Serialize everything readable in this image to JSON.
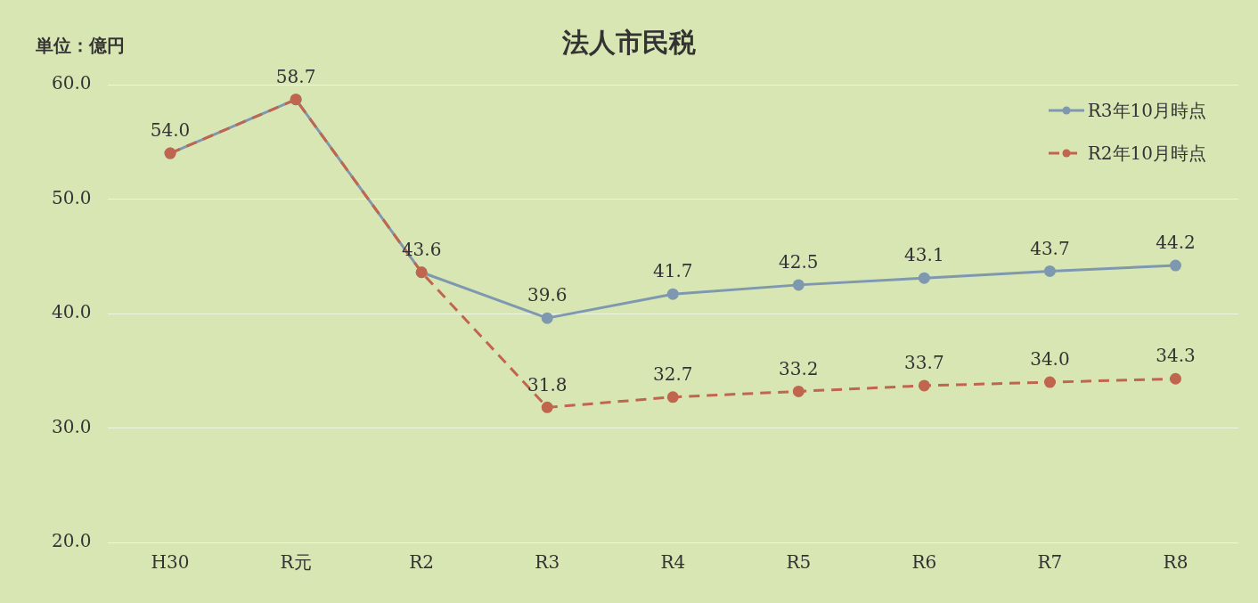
{
  "chart_data": {
    "type": "line",
    "title": "法人市民税",
    "annotations": [
      "単位：億円"
    ],
    "categories": [
      "H30",
      "R元",
      "R2",
      "R3",
      "R4",
      "R5",
      "R6",
      "R7",
      "R8"
    ],
    "series": [
      {
        "name": "R3年10月時点",
        "color": "#7e98b0",
        "line_style": "solid",
        "values": [
          54.0,
          58.7,
          43.6,
          39.6,
          41.7,
          42.5,
          43.1,
          43.7,
          44.2
        ],
        "value_labels": [
          "54.0",
          "58.7",
          "43.6",
          "39.6",
          "41.7",
          "42.5",
          "43.1",
          "43.7",
          "44.2"
        ]
      },
      {
        "name": "R2年10月時点",
        "color": "#c0654e",
        "line_style": "dashed",
        "values": [
          54.0,
          58.7,
          43.6,
          31.8,
          32.7,
          33.2,
          33.7,
          34.0,
          34.3
        ],
        "value_labels": [
          null,
          null,
          null,
          "31.8",
          "32.7",
          "33.2",
          "33.7",
          "34.0",
          "34.3"
        ]
      }
    ],
    "ylim": [
      20,
      60
    ],
    "yticks": [
      {
        "value": 20,
        "label": "20.0"
      },
      {
        "value": 30,
        "label": "30.0"
      },
      {
        "value": 40,
        "label": "40.0"
      },
      {
        "value": 50,
        "label": "50.0"
      },
      {
        "value": 60,
        "label": "60.0"
      }
    ],
    "grid": "y",
    "legend": "top right",
    "marker": "circle"
  }
}
